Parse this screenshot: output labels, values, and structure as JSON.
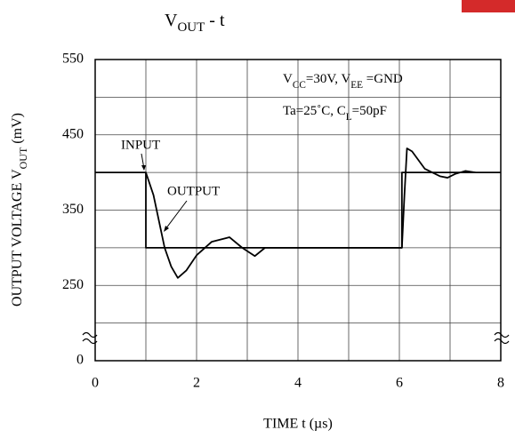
{
  "chart_data": {
    "type": "line",
    "title": [
      "V",
      "OUT",
      "  -  t"
    ],
    "x_label": "TIME  t  (µs)",
    "y_label": [
      "OUTPUT VOLTAGE V",
      "OUT",
      "  (mV)"
    ],
    "conditions": [
      [
        "V",
        "CC",
        "=30V, V",
        "EE",
        " =GND"
      ],
      [
        "Ta=25˚C, C",
        "L",
        "=50pF"
      ]
    ],
    "xlim": [
      0,
      8
    ],
    "xticks": [
      0,
      2,
      4,
      6,
      8
    ],
    "xgrid": [
      1,
      3,
      5,
      7
    ],
    "ylim": [
      0,
      550
    ],
    "ybreak": [
      0,
      150
    ],
    "yticks": [
      0,
      250,
      350,
      450,
      550
    ],
    "ygrid": [
      200,
      300,
      400,
      500
    ],
    "grid": true,
    "series": [
      {
        "name": "INPUT",
        "color": "#000000",
        "x": [
          0,
          1,
          1,
          6.05,
          6.05,
          8
        ],
        "values": [
          400,
          400,
          300,
          300,
          400,
          400
        ]
      },
      {
        "name": "OUTPUT",
        "color": "#000000",
        "x": [
          1.0,
          1.15,
          1.37,
          1.5,
          1.63,
          1.8,
          2.0,
          2.3,
          2.65,
          2.9,
          3.15,
          3.35,
          6.05,
          6.1,
          6.15,
          6.25,
          6.5,
          6.8,
          6.95,
          7.1,
          7.3,
          7.5
        ],
        "values": [
          400,
          370,
          300,
          275,
          260,
          270,
          290,
          308,
          314,
          300,
          289,
          300,
          300,
          370,
          432,
          428,
          405,
          395,
          393,
          398,
          402,
          400
        ]
      }
    ]
  }
}
